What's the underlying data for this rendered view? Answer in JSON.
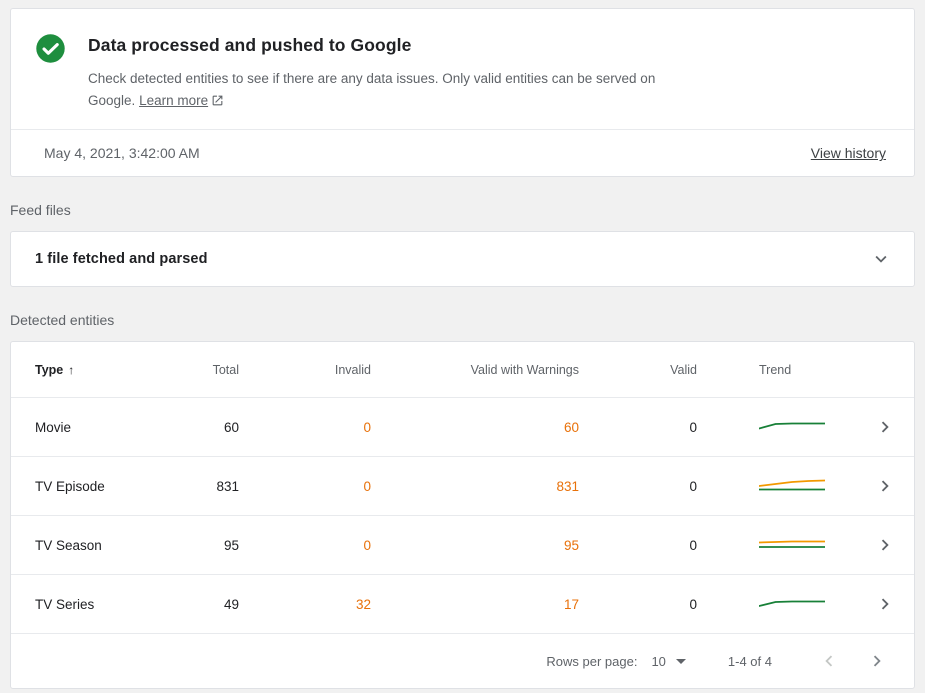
{
  "status_card": {
    "title": "Data processed and pushed to Google",
    "description": "Check detected entities to see if there are any data issues. Only valid entities can be served on Google.",
    "learn_more_label": "Learn more",
    "timestamp": "May 4, 2021, 3:42:00 AM",
    "view_history_label": "View history"
  },
  "feed_files": {
    "section_label": "Feed files",
    "summary": "1 file fetched and parsed"
  },
  "detected_entities": {
    "section_label": "Detected entities",
    "columns": [
      "Type",
      "Total",
      "Invalid",
      "Valid with Warnings",
      "Valid",
      "Trend"
    ],
    "rows": [
      {
        "type": "Movie",
        "total": "60",
        "invalid": "0",
        "valid_with_warnings": "60",
        "valid": "0",
        "trend": [
          {
            "color": "#188038",
            "y": [
              10.5,
              6,
              5.5,
              5.5,
              5.5
            ]
          }
        ]
      },
      {
        "type": "TV Episode",
        "total": "831",
        "invalid": "0",
        "valid_with_warnings": "831",
        "valid": "0",
        "trend": [
          {
            "color": "#f29900",
            "y": [
              9,
              7,
              5,
              4,
              3.5
            ]
          },
          {
            "color": "#188038",
            "y": [
              12.5,
              12.5,
              12.5,
              12.5,
              12.5
            ]
          }
        ]
      },
      {
        "type": "TV Season",
        "total": "95",
        "invalid": "0",
        "valid_with_warnings": "95",
        "valid": "0",
        "trend": [
          {
            "color": "#f29900",
            "y": [
              6.5,
              6,
              5.5,
              5.5,
              5.5
            ]
          },
          {
            "color": "#188038",
            "y": [
              11,
              11,
              11,
              11,
              11
            ]
          }
        ]
      },
      {
        "type": "TV Series",
        "total": "49",
        "invalid": "32",
        "valid_with_warnings": "17",
        "valid": "0",
        "trend": [
          {
            "color": "#188038",
            "y": [
              11,
              7,
              6.5,
              6.5,
              6.5
            ]
          }
        ]
      }
    ],
    "pagination": {
      "rows_per_page_label": "Rows per page:",
      "rows_per_page_value": "10",
      "range_label": "1-4 of 4"
    }
  },
  "colors": {
    "success_green": "#1e8e3e",
    "warning_orange": "#e8710a",
    "trend_green": "#188038",
    "trend_orange": "#f29900"
  }
}
